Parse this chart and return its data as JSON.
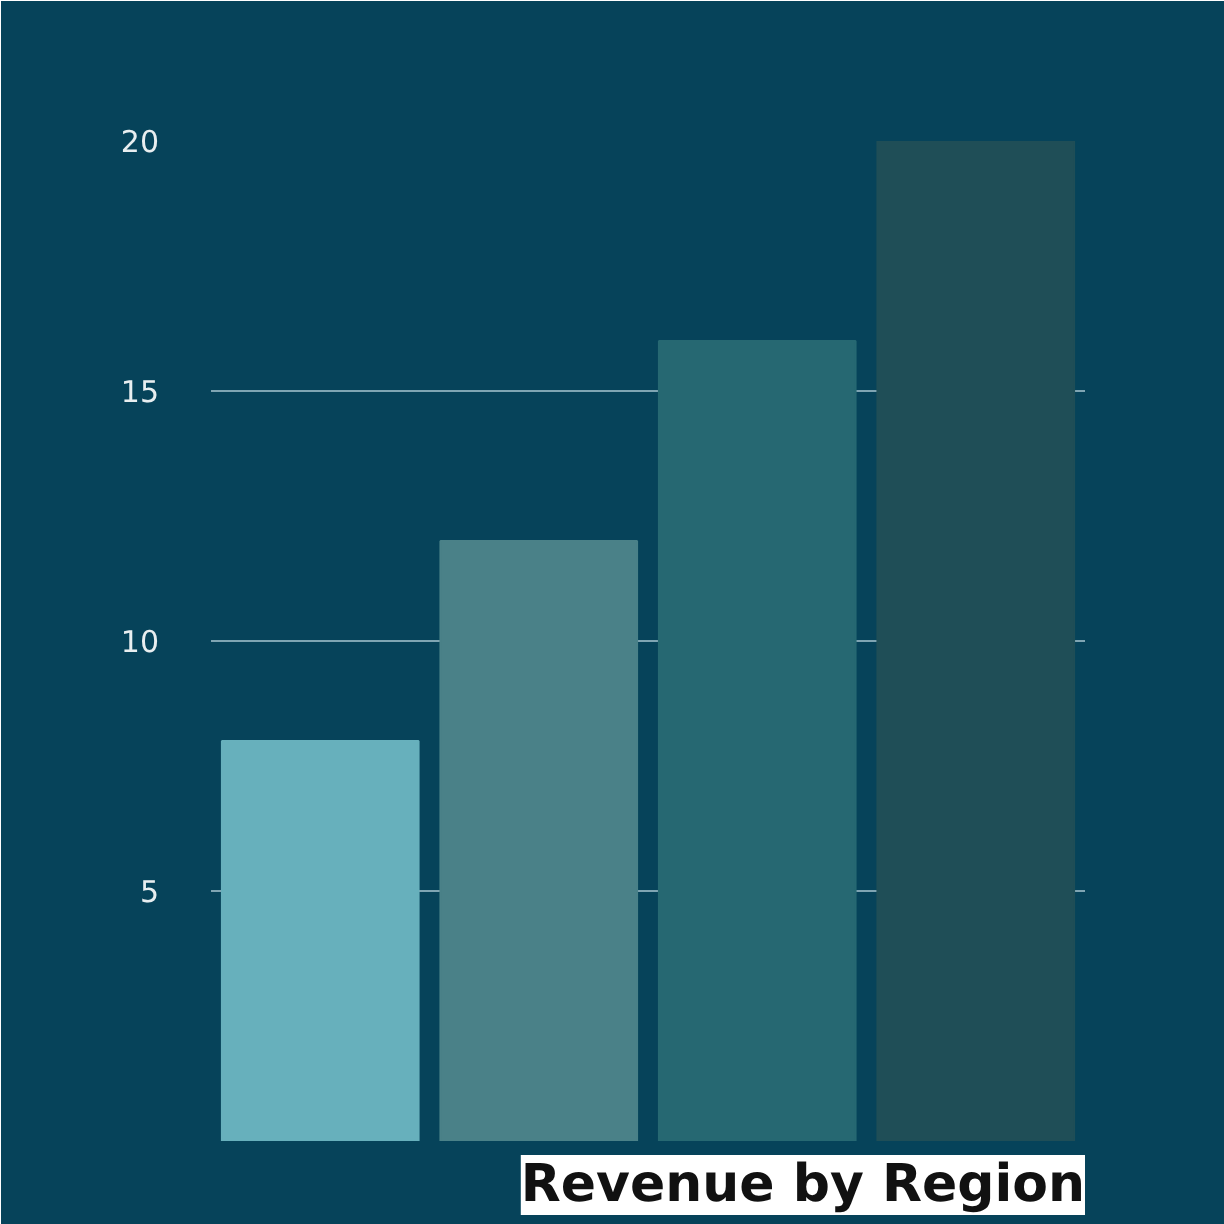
{
  "chart_data": {
    "type": "bar",
    "title": "Revenue by Region",
    "categories": [
      null,
      null,
      null,
      null
    ],
    "values": [
      8,
      12,
      16,
      20
    ],
    "colors": [
      "#67b0bc",
      "#4a8188",
      "#266872",
      "#1f4e57"
    ],
    "ylim": [
      0,
      20
    ],
    "yticks": [
      5,
      10,
      15,
      20
    ],
    "grid": "y",
    "tick_labels": "y"
  }
}
